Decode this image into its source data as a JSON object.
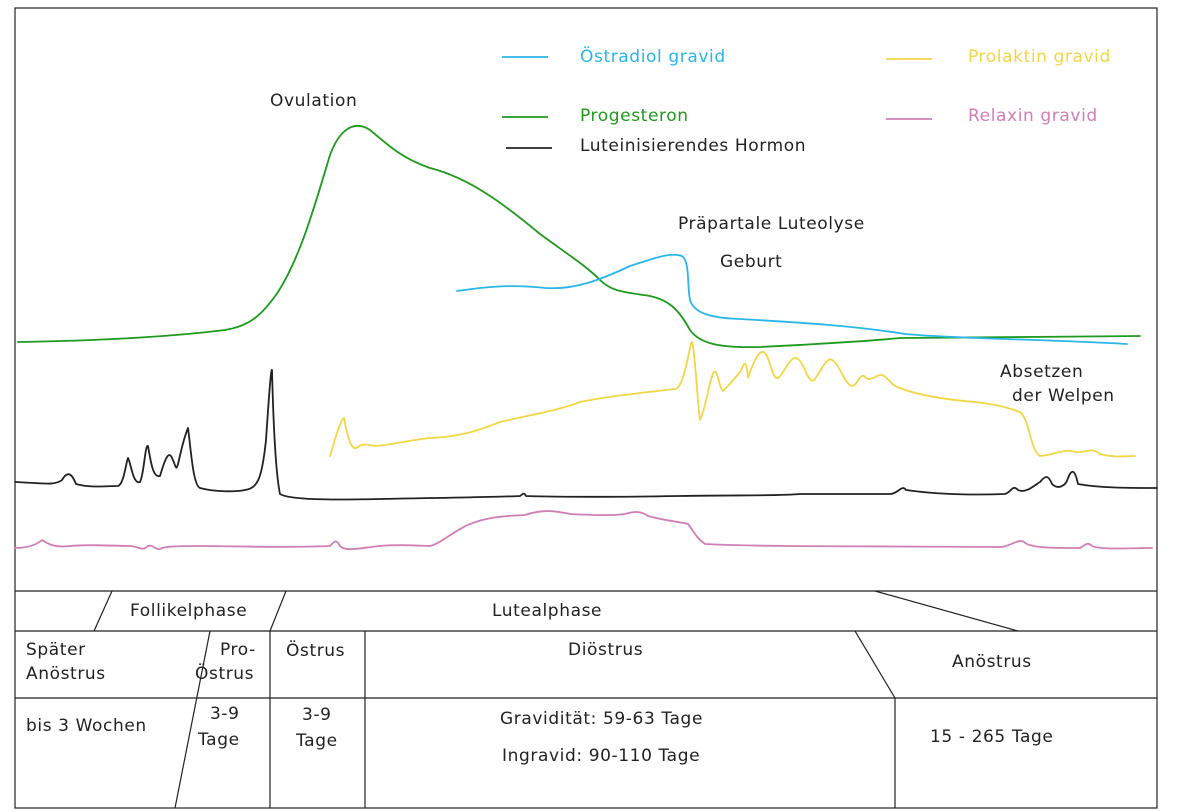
{
  "colors": {
    "oestradiol": "#29b6e8",
    "progesteron": "#1e9a1e",
    "lh": "#222222",
    "prolaktin": "#f2d646",
    "relaxin": "#d07fb6"
  },
  "legend": [
    {
      "key": "oestradiol",
      "label": "Östradiol gravid"
    },
    {
      "key": "prolaktin",
      "label": "Prolaktin gravid"
    },
    {
      "key": "progesteron",
      "label": "Progesteron"
    },
    {
      "key": "relaxin",
      "label": "Relaxin gravid"
    },
    {
      "key": "lh",
      "label": "Luteinisierendes Hormon"
    }
  ],
  "annotations": {
    "ovulation": "Ovulation",
    "luteolyse": "Präpartale Luteolyse",
    "geburt": "Geburt",
    "absetzen_1": "Absetzen",
    "absetzen_2": "der Welpen"
  },
  "phases": {
    "follikel": "Follikelphase",
    "luteal": "Lutealphase"
  },
  "stages": [
    {
      "name_lines": [
        "Später",
        "Anöstrus"
      ],
      "duration_lines": [
        "bis 3 Wochen"
      ]
    },
    {
      "name_lines": [
        "Pro-",
        "Östrus"
      ],
      "duration_lines": [
        "3-9",
        "Tage"
      ]
    },
    {
      "name_lines": [
        "Östrus"
      ],
      "duration_lines": [
        "3-9",
        "Tage"
      ]
    },
    {
      "name_lines": [
        "Diöstrus"
      ],
      "duration_lines": [
        "Gravidität: 59-63 Tage",
        "Ingravid: 90-110 Tage"
      ]
    },
    {
      "name_lines": [
        "Anöstrus"
      ],
      "duration_lines": [
        "15 - 265 Tage"
      ]
    }
  ]
}
